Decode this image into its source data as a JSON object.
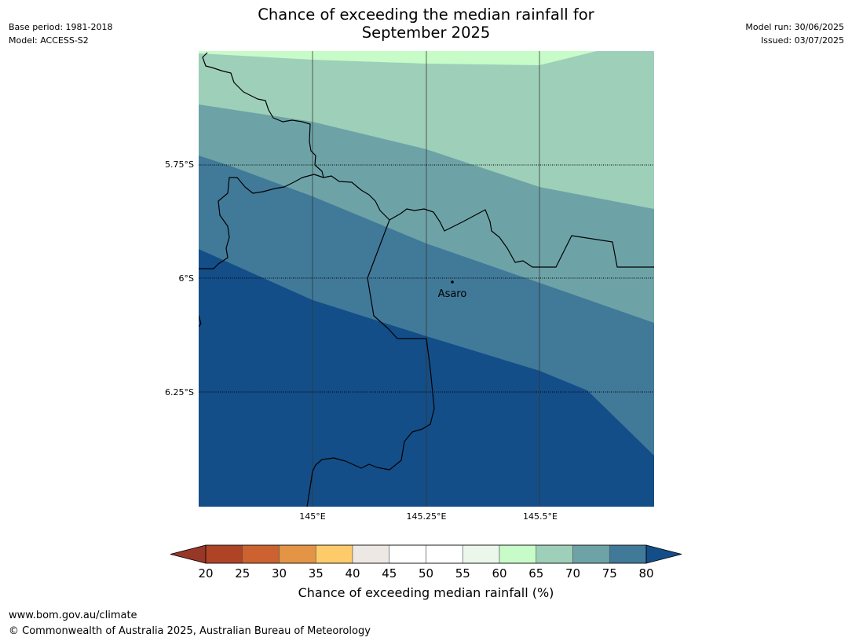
{
  "title": {
    "line1": "Chance of exceeding the median rainfall for",
    "line2": "September 2025"
  },
  "meta_left": {
    "base_period": "Base period: 1981-2018",
    "model": "Model: ACCESS-S2"
  },
  "meta_right": {
    "model_run": "Model run: 30/06/2025",
    "issued": "Issued: 03/07/2025"
  },
  "map": {
    "lat_labels": [
      "5.75°S",
      "6°S",
      "6.25°S"
    ],
    "lon_labels": [
      "145°E",
      "145.25°E",
      "145.5°E"
    ],
    "place": {
      "name": "Asaro"
    },
    "band_colors": {
      "60-65": "#c7fbc8",
      "65-70": "#9ecfb9",
      "70-75": "#6da3a7",
      "75-80": "#417999",
      "80+": "#144e88"
    }
  },
  "colorbar": {
    "label": "Chance of exceeding median rainfall (%)",
    "ticks": [
      "20",
      "25",
      "30",
      "35",
      "40",
      "45",
      "50",
      "55",
      "60",
      "65",
      "70",
      "75",
      "80"
    ],
    "colors": [
      "#ae4325",
      "#cc622f",
      "#e39445",
      "#fdcb69",
      "#ede8e3",
      "#ffffff",
      "#ffffff",
      "#ebf7eb",
      "#c7fbc8",
      "#9ecfb9",
      "#6da3a7",
      "#417999"
    ],
    "under_color": "#983728",
    "over_color": "#144e88"
  },
  "footer": {
    "url": "www.bom.gov.au/climate",
    "copyright": "© Commonwealth of Australia 2025, Australian Bureau of Meteorology"
  }
}
